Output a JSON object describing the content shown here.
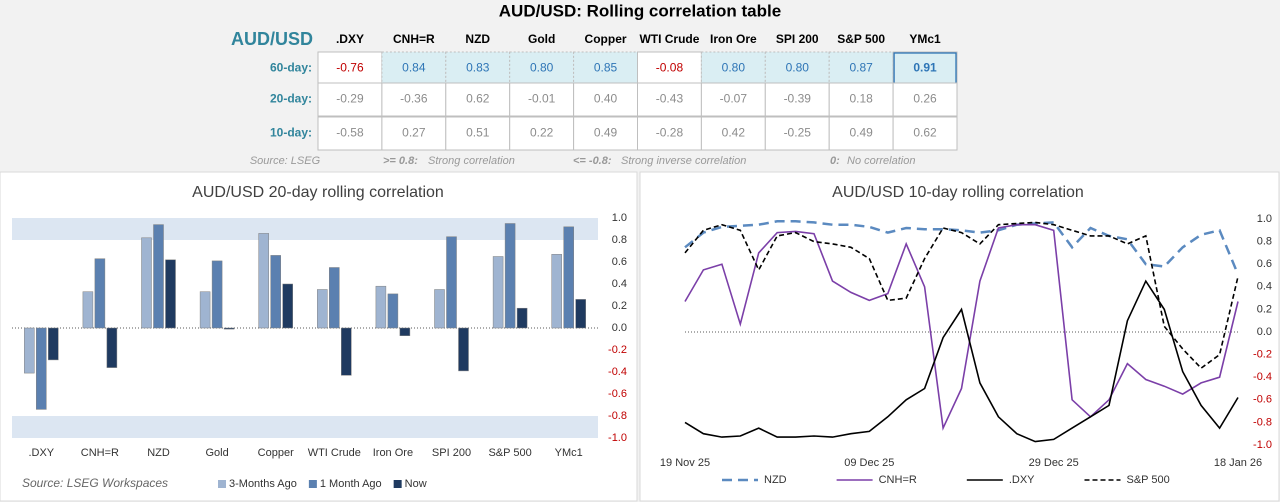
{
  "table": {
    "title": "AUD/USD: Rolling correlation table",
    "corner": "AUD/USD",
    "columns": [
      ".DXY",
      "CNH=R",
      "NZD",
      "Gold",
      "Copper",
      "WTI Crude",
      "Iron Ore",
      "SPI 200",
      "S&P 500",
      "YMc1"
    ],
    "rows": [
      {
        "label": "60-day:",
        "values": [
          "-0.76",
          "0.84",
          "0.83",
          "0.80",
          "0.85",
          "-0.08",
          "0.80",
          "0.80",
          "0.87",
          "0.91"
        ]
      },
      {
        "label": "20-day:",
        "values": [
          "-0.29",
          "-0.36",
          "0.62",
          "-0.01",
          "0.40",
          "-0.43",
          "-0.07",
          "-0.39",
          "0.18",
          "0.26"
        ]
      },
      {
        "label": "10-day:",
        "values": [
          "-0.58",
          "0.27",
          "0.51",
          "0.22",
          "0.49",
          "-0.28",
          "0.42",
          "-0.25",
          "0.49",
          "0.62"
        ]
      }
    ],
    "notes": {
      "source": "Source: LSEG",
      "legend": [
        {
          "key": ">= 0.8:",
          "text": "Strong correlation"
        },
        {
          "key": "<= -0.8:",
          "text": "Strong inverse correlation"
        },
        {
          "key": "0:",
          "text": "No correlation"
        }
      ]
    }
  },
  "chart_data": [
    {
      "type": "bar",
      "title": "AUD/USD 20-day rolling correlation",
      "source": "Source: LSEG Workspaces",
      "categories": [
        ".DXY",
        "CNH=R",
        "NZD",
        "Gold",
        "Copper",
        "WTI Crude",
        "Iron Ore",
        "SPI 200",
        "S&P 500",
        "YMc1"
      ],
      "series": [
        {
          "name": "3-Months Ago",
          "color": "#9fb4d1",
          "values": [
            -0.41,
            0.33,
            0.82,
            0.33,
            0.86,
            0.35,
            0.38,
            0.35,
            0.65,
            0.67
          ]
        },
        {
          "name": "1 Month Ago",
          "color": "#5b80b0",
          "values": [
            -0.74,
            0.63,
            0.94,
            0.61,
            0.66,
            0.55,
            0.31,
            0.83,
            0.95,
            0.92
          ]
        },
        {
          "name": "Now",
          "color": "#1f3a60",
          "values": [
            -0.29,
            -0.36,
            0.62,
            -0.01,
            0.4,
            -0.43,
            -0.07,
            -0.39,
            0.18,
            0.26
          ]
        }
      ],
      "ylim": [
        -1,
        1
      ],
      "yticks": [
        {
          "value": 1,
          "label": "1.0"
        },
        0.8,
        0.6,
        0.4,
        0.2,
        {
          "value": 0,
          "label": "0.0"
        },
        -0.2,
        -0.4,
        -0.6,
        -0.8,
        {
          "value": -1,
          "label": "-1.0"
        }
      ],
      "bands": [
        [
          0.8,
          1
        ],
        [
          -1,
          -0.8
        ]
      ],
      "band_color": "#dce6f2",
      "legend": "bottom"
    },
    {
      "type": "line",
      "title": "AUD/USD 10-day rolling correlation",
      "categories": [
        "19 Nov 25",
        null,
        null,
        null,
        null,
        null,
        null,
        null,
        null,
        null,
        "09 Dec 25",
        null,
        null,
        null,
        null,
        null,
        null,
        null,
        null,
        null,
        "29 Dec 25",
        null,
        null,
        null,
        null,
        null,
        null,
        null,
        null,
        null,
        "18 Jan 26"
      ],
      "series": [
        {
          "name": "NZD",
          "color": "#5b8ac0",
          "dash": "dashed",
          "values": [
            0.75,
            0.88,
            0.93,
            0.94,
            0.95,
            0.98,
            0.98,
            0.97,
            0.95,
            0.95,
            0.93,
            0.88,
            0.92,
            0.91,
            0.91,
            0.9,
            0.88,
            0.9,
            0.95,
            0.96,
            0.97,
            0.75,
            0.92,
            0.85,
            0.82,
            0.6,
            0.58,
            0.75,
            0.86,
            0.9,
            0.51
          ]
        },
        {
          "name": "CNH=R",
          "color": "#7b3fa8",
          "dash": "solid",
          "values": [
            0.27,
            0.55,
            0.6,
            0.07,
            0.7,
            0.88,
            0.89,
            0.87,
            0.45,
            0.35,
            0.28,
            0.34,
            0.78,
            0.4,
            -0.85,
            -0.5,
            0.45,
            0.92,
            0.95,
            0.95,
            0.9,
            -0.6,
            -0.75,
            -0.6,
            -0.28,
            -0.42,
            -0.48,
            -0.55,
            -0.45,
            -0.4,
            0.27
          ]
        },
        {
          "name": ".DXY",
          "color": "#000000",
          "dash": "solid",
          "values": [
            -0.8,
            -0.9,
            -0.93,
            -0.92,
            -0.85,
            -0.93,
            -0.93,
            -0.92,
            -0.93,
            -0.9,
            -0.88,
            -0.75,
            -0.6,
            -0.5,
            -0.05,
            0.2,
            -0.45,
            -0.75,
            -0.9,
            -0.97,
            -0.95,
            -0.85,
            -0.75,
            -0.65,
            0.1,
            0.45,
            0.2,
            -0.35,
            -0.65,
            -0.85,
            -0.58
          ]
        },
        {
          "name": "S&P 500",
          "color": "#000000",
          "dash": "dashed",
          "values": [
            0.7,
            0.9,
            0.95,
            0.9,
            0.55,
            0.85,
            0.88,
            0.8,
            0.78,
            0.75,
            0.65,
            0.28,
            0.3,
            0.65,
            0.92,
            0.88,
            0.78,
            0.95,
            0.96,
            0.97,
            0.95,
            0.9,
            0.85,
            0.85,
            0.78,
            0.85,
            0.05,
            -0.15,
            -0.32,
            -0.2,
            0.49
          ]
        }
      ],
      "ylim": [
        -1,
        1
      ],
      "yticks": [
        {
          "value": 1,
          "label": "1.0"
        },
        0.8,
        0.6,
        0.4,
        0.2,
        {
          "value": 0,
          "label": "0.0"
        },
        -0.2,
        -0.4,
        -0.6,
        -0.8,
        {
          "value": -1,
          "label": "-1.0"
        }
      ],
      "legend": "bottom"
    }
  ]
}
